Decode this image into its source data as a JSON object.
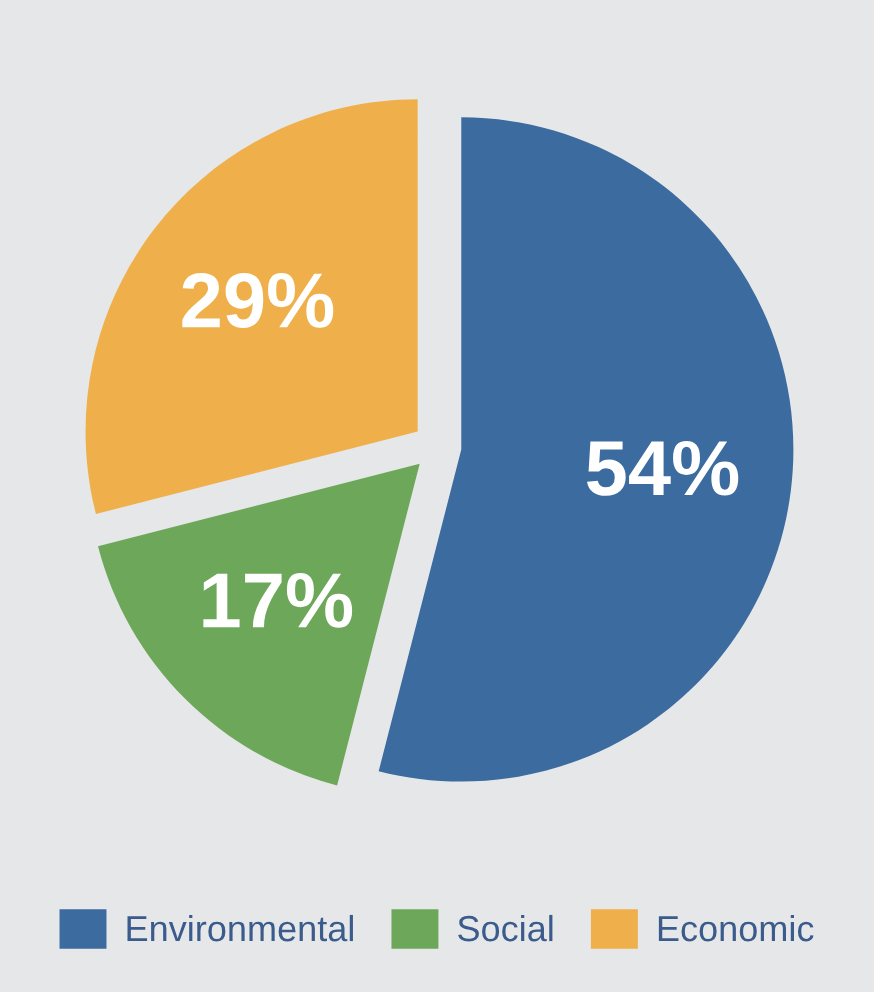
{
  "chart_data": {
    "type": "pie",
    "categories": [
      "Environmental",
      "Social",
      "Economic"
    ],
    "values": [
      54,
      17,
      29
    ],
    "value_labels": [
      "54%",
      "17%",
      "29%"
    ],
    "colors": [
      "#3b6b9f",
      "#6da85a",
      "#efb04b"
    ],
    "legend": "bottom"
  }
}
